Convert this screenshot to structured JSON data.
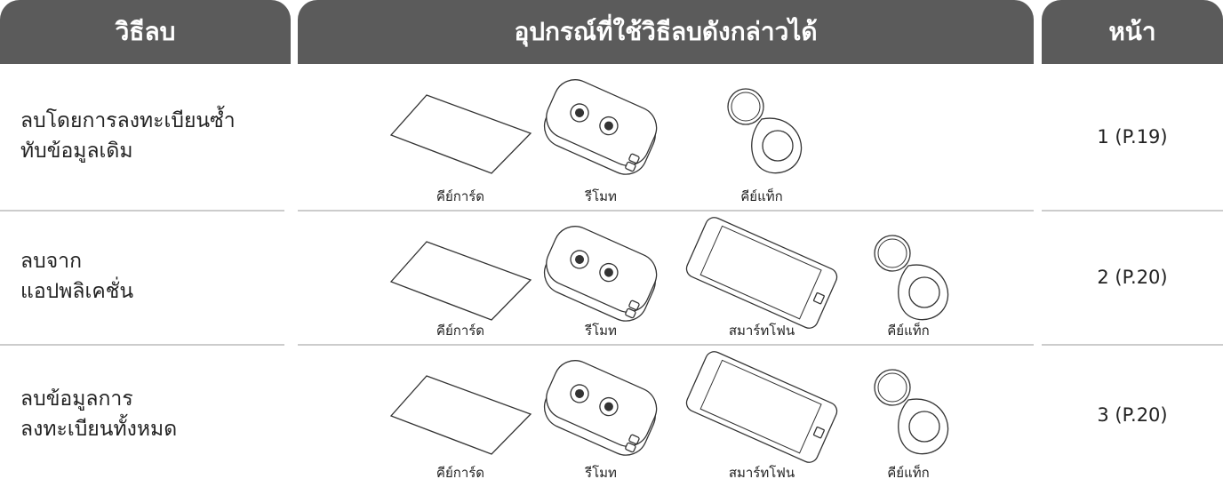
{
  "table": {
    "headers": [
      "วิธีลบ",
      "อุปกรณ์ที่ใช้วิธีลบดังกล่าวได้",
      "หน้า"
    ],
    "rows": [
      {
        "method": [
          "ลบโดยการลงทะเบียนซ้ำ",
          "ทับข้อมูลเดิม"
        ],
        "devices": [
          "คีย์การ์ด",
          "รีโมท",
          "คีย์แท็ก"
        ],
        "page": "1 (P.19)"
      },
      {
        "method": [
          "ลบจาก",
          "แอปพลิเคชั่น"
        ],
        "devices": [
          "คีย์การ์ด",
          "รีโมท",
          "สมาร์ทโฟน",
          "คีย์แท็ก"
        ],
        "page": "2 (P.20)"
      },
      {
        "method": [
          "ลบข้อมูลการ",
          "ลงทะเบียนทั้งหมด"
        ],
        "devices": [
          "คีย์การ์ด",
          "รีโมท",
          "สมาร์ทโฟน",
          "คีย์แท็ก"
        ],
        "page": "3 (P.20)"
      }
    ]
  }
}
